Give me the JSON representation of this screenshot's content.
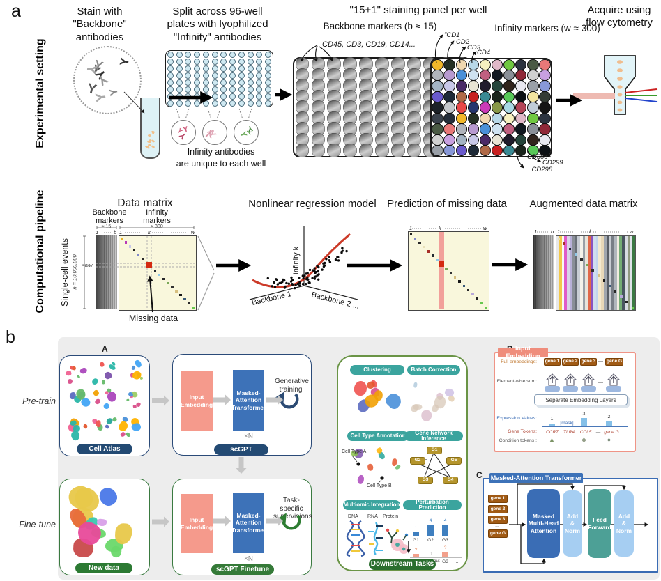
{
  "figure": {
    "panel_a_label": "a",
    "panel_b_label": "b"
  },
  "exp": {
    "side_label": "Experimental setting",
    "step1_title": "Stain with\n\"Backbone\"\nantibodies",
    "step2_title": "Split across 96-well\nplates with lyophilized\n\"Infinity\" antibodies",
    "step2_caption": "Infinity antibodies",
    "step2_caption2": "are unique to each well",
    "panel_title": "\"15+1\" staining panel per well",
    "backbone_title": "Backbone markers (b ≈ 15)",
    "backbone_cds": "CD45, CD3, CD19, CD14...",
    "plus": "+",
    "infinity_title": "Infinity markers (w ≈ 300)",
    "cd_top": [
      "\"CD1",
      "CD2",
      "CD3",
      "CD4 ..."
    ],
    "cd_bottom": [
      "CD300\"",
      "CD299",
      "... CD298"
    ],
    "acquire_title": "Acquire using\nflow cytometry"
  },
  "comp": {
    "side_label": "Computational pipeline",
    "matrix_title": "Data matrix",
    "backbone_label": "Backbone\nmarkers",
    "backbone_approx": "≈ 15",
    "infinity_label": "Infinity\nmarkers",
    "infinity_approx": "≈ 300",
    "events_label": "Single-cell events",
    "n_label": "n = 10,000,000",
    "nw_label": "≈n/w",
    "ticks": {
      "one": "1",
      "b": "b",
      "k": "k",
      "w": "w"
    },
    "missing_label": "Missing data",
    "regression_title": "Nonlinear regression model",
    "axis_infinity": "Infinity k",
    "axis_backbone1": "Backbone 1",
    "axis_backbone2": "Backbone 2 ...",
    "prediction_title": "Prediction of missing data",
    "augmented_title": "Augmented data matrix"
  },
  "scgpt": {
    "sub_a_label": "A",
    "pretrain_label": "Pre-train",
    "finetune_label": "Fine-tune",
    "cell_atlas_badge": "Cell Atlas",
    "new_data_badge": "New data",
    "input_embedding": "Input\nEmbedding",
    "transformer": "Masked-\nAttention\nTransformer",
    "xn": "×N",
    "generative": "Generative\ntraining",
    "task_specific": "Task-specific\nsupervisions",
    "scgpt_badge": "scGPT",
    "scgpt_finetune_badge": "scGPT Finetune",
    "downstream_badge": "Downstream Tasks",
    "tasks": [
      "Clustering",
      "Batch Correction",
      "Cell Type Annotation",
      "Gene Network Inference",
      "Multiomic Integration",
      "Perturbation Prediction"
    ],
    "cell_type_a": "Cell Type A",
    "cell_type_b": "Cell Type B",
    "network_nodes": [
      "G1",
      "G2",
      "G3",
      "G4",
      "G5"
    ],
    "omics_labels": [
      "DNA",
      "RNA",
      "Protein"
    ],
    "perturbation": {
      "top_values": [
        "1",
        "4",
        "4"
      ],
      "top_labels": [
        "G1",
        "G2",
        "G3",
        "..."
      ],
      "bottom_values": [
        "?",
        "0",
        "?"
      ],
      "bottom_labels": [
        "G1",
        "Knockout",
        "G3",
        "..."
      ]
    },
    "sub_b_label": "B",
    "embedding_panel": {
      "title": "Input Embedding",
      "row_full": "Full embeddings:",
      "row_sum": "Element-wise sum:",
      "row_expr": "Expression Values:",
      "row_tokens": "Gene Tokens:",
      "row_cond": "Condition tokens :",
      "gene_tokens": [
        "gene 1",
        "gene 2",
        "gene 3",
        "—",
        "gene G"
      ],
      "embed_layers_box": "Separate Embedding Layers",
      "expr_values": [
        "1",
        "[mask]",
        "3",
        "2"
      ],
      "gene_names": [
        "CCR7",
        "TLR4",
        "CCL5",
        "—",
        "gene G"
      ],
      "cond_shapes": [
        "▲",
        "◆",
        "●"
      ],
      "sum_dash": "—"
    },
    "sub_c_label": "C",
    "transformer_panel": {
      "title": "Masked-Attention Transformer",
      "gene_tokens": [
        "gene 1",
        "gene 2",
        "gene 3",
        "...",
        "gene G"
      ],
      "block_mmha": "Masked\nMulti-Head\nAttention",
      "block_addnorm1": "Add\n&\nNorm",
      "block_ff": "Feed\nForward",
      "block_addnorm2": "Add\n&\nNorm"
    }
  },
  "colors": {
    "navy": "#234a73",
    "salmon": "#f59a8c",
    "blue": "#3d72b8",
    "light_blue": "#a6cef2",
    "teal": "#4da096",
    "teal_pill": "#3ba49e",
    "green": "#2e7d32",
    "dark_green": "#2a6e2e",
    "olive_border": "#6a9446",
    "token_brown": "#a05a14",
    "gold_node": "#b5952c",
    "matrix_yellow": "#f9f7dc",
    "stripe_red": "#f2a09a",
    "curve_red": "#cc3a28"
  }
}
